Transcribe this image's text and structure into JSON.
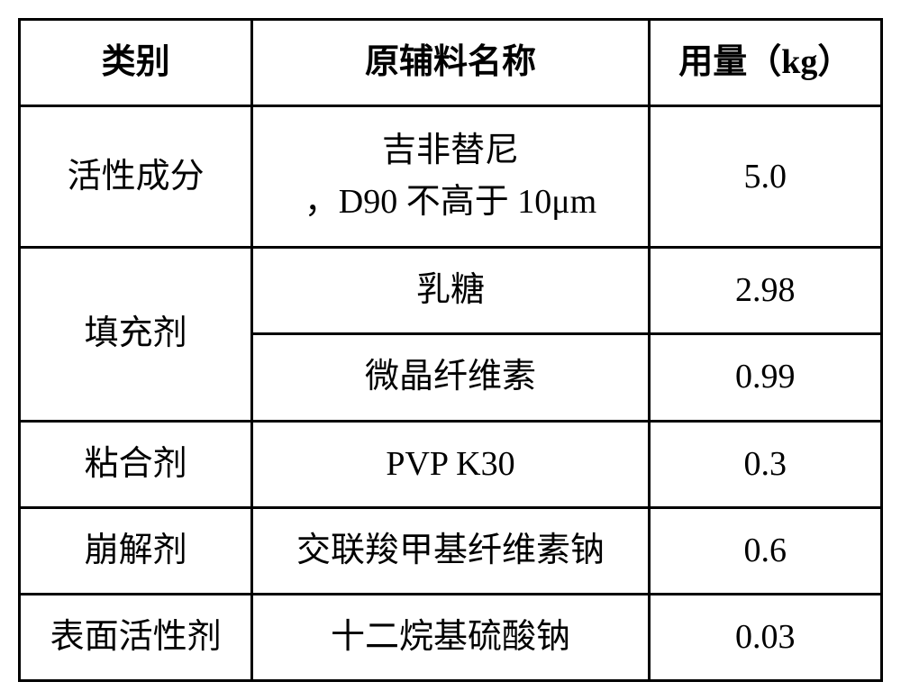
{
  "table": {
    "headers": {
      "category": "类别",
      "name": "原辅料名称",
      "amount": "用量（kg）"
    },
    "rows": [
      {
        "category": "活性成分",
        "name_line1": "吉非替尼",
        "name_line2": "，D90 不高于 10μm",
        "amount": "5.0",
        "category_rowspan": 1
      },
      {
        "category": "填充剂",
        "name": "乳糖",
        "amount": "2.98",
        "category_rowspan": 2
      },
      {
        "name": "微晶纤维素",
        "amount": "0.99"
      },
      {
        "category": "粘合剂",
        "name": "PVP K30",
        "amount": "0.3",
        "category_rowspan": 1
      },
      {
        "category": "崩解剂",
        "name": "交联羧甲基纤维素钠",
        "amount": "0.6",
        "category_rowspan": 1
      },
      {
        "category": "表面活性剂",
        "name": "十二烷基硫酸钠",
        "amount": "0.03",
        "category_rowspan": 1
      }
    ],
    "styling": {
      "border_color": "#000000",
      "border_width": 3,
      "background_color": "#ffffff",
      "text_color": "#000000",
      "header_font_weight": "bold",
      "cell_font_size": 38,
      "font_family": "SimSun"
    }
  }
}
